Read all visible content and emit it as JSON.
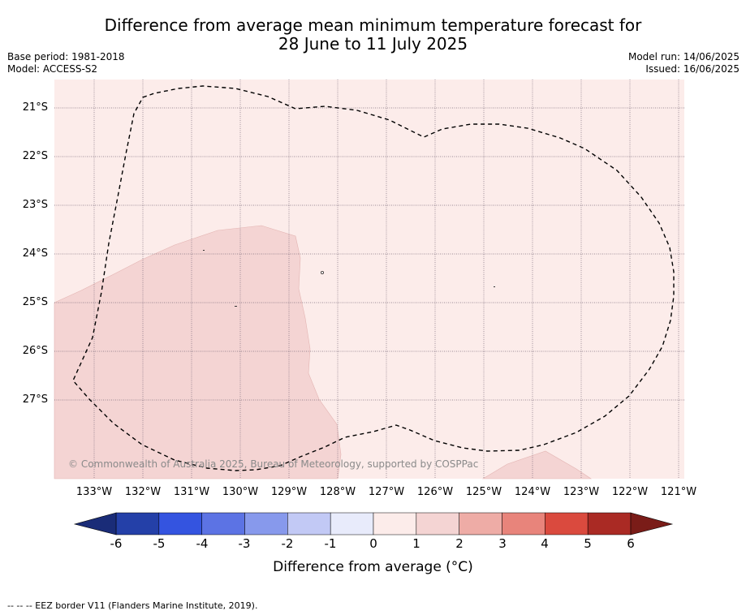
{
  "title": {
    "line1": "Difference from average mean minimum temperature forecast for",
    "line2": "28 June to 11 July 2025"
  },
  "meta": {
    "base_period": "Base period: 1981-2018",
    "model": "Model: ACCESS-S2",
    "model_run": "Model run: 14/06/2025",
    "issued": "Issued: 16/06/2025"
  },
  "map": {
    "latitude_labels": [
      "21°S",
      "22°S",
      "23°S",
      "24°S",
      "25°S",
      "26°S",
      "27°S"
    ],
    "longitude_labels": [
      "133°W",
      "132°W",
      "131°W",
      "130°W",
      "129°W",
      "128°W",
      "127°W",
      "126°W",
      "125°W",
      "124°W",
      "123°W",
      "122°W",
      "121°W"
    ],
    "background_category": "0 to 1",
    "highlight_category": "1 to 2",
    "copyright": "© Commonwealth of Australia 2025, Bureau of Meteorology, supported by COSPPac"
  },
  "colorbar": {
    "tick_labels": [
      "-6",
      "-5",
      "-4",
      "-3",
      "-2",
      "-1",
      "0",
      "1",
      "2",
      "3",
      "4",
      "5",
      "6"
    ],
    "colors": [
      "#2440a8",
      "#3454e0",
      "#5c73e4",
      "#8799ec",
      "#c2c9f5",
      "#e8ebfb",
      "#fcecea",
      "#f4d4d3",
      "#eeaca6",
      "#e8847b",
      "#da4a3e",
      "#aa2a24"
    ],
    "under_color": "#1a2c78",
    "over_color": "#7a1c18",
    "title": "Difference from average (°C)"
  },
  "footer": "-- -- -- EEZ border V11 (Flanders Marine Institute, 2019)."
}
